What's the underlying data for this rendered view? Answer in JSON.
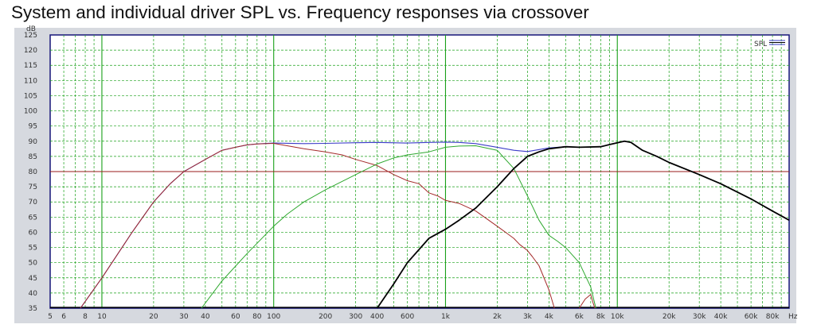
{
  "title": "System and individual driver SPL vs. Frequency responses via crossover",
  "chart_data": {
    "type": "line",
    "title": "System and individual driver SPL vs. Frequency responses via crossover",
    "xlabel": "",
    "ylabel": "",
    "x_unit": "Hz",
    "y_unit": "dB",
    "x_scale": "log",
    "xlim": [
      5,
      100000
    ],
    "ylim": [
      35,
      125
    ],
    "x_ticks": [
      {
        "v": 5,
        "label": "5"
      },
      {
        "v": 6,
        "label": "6"
      },
      {
        "v": 8,
        "label": "8"
      },
      {
        "v": 10,
        "label": "10"
      },
      {
        "v": 20,
        "label": "20"
      },
      {
        "v": 30,
        "label": "30"
      },
      {
        "v": 40,
        "label": "40"
      },
      {
        "v": 60,
        "label": "60"
      },
      {
        "v": 80,
        "label": "80"
      },
      {
        "v": 100,
        "label": "100"
      },
      {
        "v": 200,
        "label": "200"
      },
      {
        "v": 300,
        "label": "300"
      },
      {
        "v": 400,
        "label": "400"
      },
      {
        "v": 600,
        "label": "600"
      },
      {
        "v": 1000,
        "label": "1k"
      },
      {
        "v": 2000,
        "label": "2k"
      },
      {
        "v": 3000,
        "label": "3k"
      },
      {
        "v": 4000,
        "label": "4k"
      },
      {
        "v": 6000,
        "label": "6k"
      },
      {
        "v": 8000,
        "label": "8k"
      },
      {
        "v": 10000,
        "label": "10k"
      },
      {
        "v": 20000,
        "label": "20k"
      },
      {
        "v": 30000,
        "label": "30k"
      },
      {
        "v": 40000,
        "label": "40k"
      },
      {
        "v": 60000,
        "label": "60k"
      },
      {
        "v": 80000,
        "label": "80k"
      }
    ],
    "y_ticks": [
      125,
      120,
      115,
      110,
      105,
      100,
      95,
      90,
      85,
      80,
      75,
      70,
      65,
      60,
      55,
      50,
      45,
      40,
      35
    ],
    "grid": true,
    "legend": {
      "label": "SPL",
      "position": "top-right"
    },
    "reference_line": {
      "y": 80,
      "color": "#9a1b1b"
    },
    "colors": {
      "background": "#ffffff",
      "grid": "#19a019",
      "frame": "#16167a",
      "system": "#3c3cc8",
      "woofer": "#a42a2a",
      "midrange": "#2ea82e",
      "tweeter": "#000000",
      "reference": "#9a1b1b"
    },
    "series": [
      {
        "key": "system",
        "points": [
          [
            7.5,
            35
          ],
          [
            10,
            45
          ],
          [
            15,
            60
          ],
          [
            20,
            70
          ],
          [
            25,
            76
          ],
          [
            30,
            80
          ],
          [
            40,
            84
          ],
          [
            50,
            87
          ],
          [
            60,
            88
          ],
          [
            70,
            88.8
          ],
          [
            80,
            89.1
          ],
          [
            100,
            89.4
          ],
          [
            150,
            89.2
          ],
          [
            200,
            89.3
          ],
          [
            300,
            89.5
          ],
          [
            400,
            89.6
          ],
          [
            600,
            89.4
          ],
          [
            800,
            89.6
          ],
          [
            1000,
            89.7
          ],
          [
            1200,
            89.6
          ],
          [
            1500,
            89.2
          ],
          [
            2000,
            88
          ],
          [
            2500,
            87
          ],
          [
            3000,
            86.6
          ],
          [
            4000,
            87.8
          ],
          [
            5000,
            88.2
          ],
          [
            6000,
            88
          ],
          [
            8000,
            88.2
          ],
          [
            10000,
            89.5
          ],
          [
            11000,
            90
          ],
          [
            12000,
            89.6
          ],
          [
            14000,
            87
          ],
          [
            17000,
            85
          ],
          [
            20000,
            83
          ],
          [
            30000,
            79
          ],
          [
            40000,
            76
          ],
          [
            60000,
            71
          ],
          [
            80000,
            67
          ],
          [
            100000,
            64
          ]
        ]
      },
      {
        "key": "woofer",
        "points": [
          [
            7.5,
            35
          ],
          [
            10,
            45
          ],
          [
            15,
            60
          ],
          [
            20,
            70
          ],
          [
            25,
            76
          ],
          [
            30,
            80
          ],
          [
            40,
            84
          ],
          [
            50,
            87
          ],
          [
            60,
            88
          ],
          [
            70,
            88.8
          ],
          [
            80,
            89.1
          ],
          [
            100,
            89.3
          ],
          [
            150,
            87.5
          ],
          [
            200,
            86.5
          ],
          [
            250,
            85.5
          ],
          [
            300,
            84
          ],
          [
            400,
            82
          ],
          [
            500,
            79
          ],
          [
            600,
            77
          ],
          [
            700,
            76
          ],
          [
            800,
            73
          ],
          [
            900,
            72
          ],
          [
            1000,
            70.5
          ],
          [
            1200,
            69.5
          ],
          [
            1500,
            67
          ],
          [
            2000,
            62
          ],
          [
            2500,
            58
          ],
          [
            2700,
            56
          ],
          [
            3000,
            54
          ],
          [
            3200,
            52
          ],
          [
            3500,
            49
          ],
          [
            4000,
            41
          ],
          [
            4300,
            35
          ]
        ]
      },
      {
        "key": "midrange",
        "points": [
          [
            38,
            35
          ],
          [
            50,
            44
          ],
          [
            70,
            53
          ],
          [
            100,
            62
          ],
          [
            120,
            66
          ],
          [
            150,
            70
          ],
          [
            200,
            74
          ],
          [
            300,
            79
          ],
          [
            400,
            82.5
          ],
          [
            500,
            84.5
          ],
          [
            600,
            85.5
          ],
          [
            800,
            86.5
          ],
          [
            1000,
            88
          ],
          [
            1200,
            88.4
          ],
          [
            1500,
            88.5
          ],
          [
            2000,
            87
          ],
          [
            2500,
            81
          ],
          [
            3000,
            72
          ],
          [
            3500,
            64
          ],
          [
            4000,
            59
          ],
          [
            4500,
            57
          ],
          [
            5000,
            55
          ],
          [
            6000,
            50
          ],
          [
            7000,
            42
          ],
          [
            7500,
            35
          ]
        ]
      },
      {
        "key": "tweeter",
        "points": [
          [
            400,
            35
          ],
          [
            500,
            43
          ],
          [
            600,
            50
          ],
          [
            800,
            58
          ],
          [
            1000,
            61
          ],
          [
            1200,
            64
          ],
          [
            1500,
            68
          ],
          [
            2000,
            75
          ],
          [
            2500,
            81
          ],
          [
            3000,
            85
          ],
          [
            3500,
            86.5
          ],
          [
            4000,
            87.5
          ],
          [
            5000,
            88.2
          ],
          [
            6000,
            88
          ],
          [
            8000,
            88.2
          ],
          [
            10000,
            89.5
          ],
          [
            11000,
            90
          ],
          [
            12000,
            89.6
          ],
          [
            14000,
            87
          ],
          [
            17000,
            85
          ],
          [
            20000,
            83
          ],
          [
            30000,
            79
          ],
          [
            40000,
            76
          ],
          [
            60000,
            71
          ],
          [
            80000,
            67
          ],
          [
            100000,
            64
          ]
        ]
      },
      {
        "key": "woofer_tail",
        "points": [
          [
            6000,
            35
          ],
          [
            6500,
            38
          ],
          [
            7000,
            39.5
          ],
          [
            7200,
            37
          ],
          [
            7400,
            35
          ]
        ]
      }
    ]
  }
}
